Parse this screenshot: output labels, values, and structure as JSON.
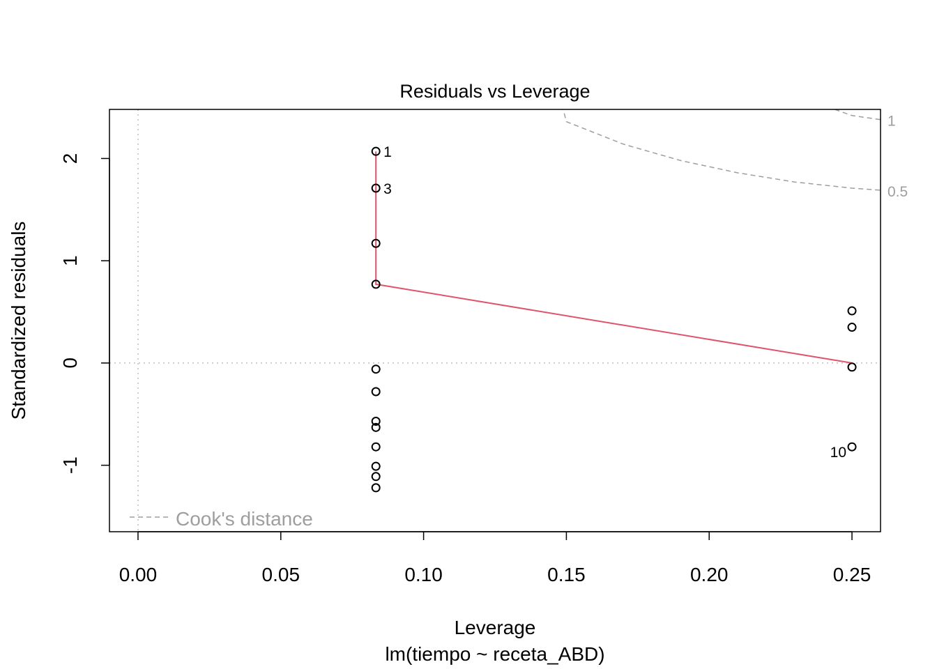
{
  "chart_data": {
    "type": "scatter",
    "title": "Residuals vs Leverage",
    "xlabel": "Leverage",
    "sublabel": "lm(tiempo ~ receta_ABD)",
    "ylabel": "Standardized residuals",
    "xlim": [
      -0.01,
      0.26
    ],
    "ylim": [
      -1.65,
      2.48
    ],
    "xticks": [
      0.0,
      0.05,
      0.1,
      0.15,
      0.2,
      0.25
    ],
    "xtick_labels": [
      "0.00",
      "0.05",
      "0.10",
      "0.15",
      "0.20",
      "0.25"
    ],
    "yticks": [
      -1,
      0,
      1,
      2
    ],
    "ytick_labels": [
      "-1",
      "0",
      "1",
      "2"
    ],
    "grid": false,
    "reference_lines": [
      {
        "axis": "x",
        "value": 0
      },
      {
        "axis": "y",
        "value": 0
      }
    ],
    "points": [
      {
        "x": 0.0833,
        "y": 2.07,
        "label": "1"
      },
      {
        "x": 0.0833,
        "y": 1.71,
        "label": "3"
      },
      {
        "x": 0.0833,
        "y": 1.17
      },
      {
        "x": 0.0833,
        "y": 0.77
      },
      {
        "x": 0.0833,
        "y": -0.06
      },
      {
        "x": 0.0833,
        "y": -0.28
      },
      {
        "x": 0.0833,
        "y": -0.57
      },
      {
        "x": 0.0833,
        "y": -0.63
      },
      {
        "x": 0.0833,
        "y": -0.82
      },
      {
        "x": 0.0833,
        "y": -1.01
      },
      {
        "x": 0.0833,
        "y": -1.11
      },
      {
        "x": 0.0833,
        "y": -1.22
      },
      {
        "x": 0.25,
        "y": 0.51
      },
      {
        "x": 0.25,
        "y": 0.35
      },
      {
        "x": 0.25,
        "y": -0.04
      },
      {
        "x": 0.25,
        "y": -0.82,
        "label": "10"
      }
    ],
    "smooth_line": {
      "color": "#DF536B",
      "x": [
        0.0833,
        0.0833,
        0.25
      ],
      "y": [
        2.07,
        0.77,
        0.0
      ]
    },
    "cooks_contours": [
      {
        "label": "0.5",
        "x": [
          0.139,
          0.15,
          0.17,
          0.19,
          0.21,
          0.23,
          0.25,
          0.26
        ],
        "y": [
          3.55,
          2.36,
          2.14,
          1.98,
          1.86,
          1.77,
          1.71,
          1.69
        ]
      },
      {
        "label": "1",
        "x": [
          0.244,
          0.25,
          0.26
        ],
        "y": [
          2.48,
          2.42,
          2.38
        ]
      }
    ],
    "legend": {
      "entries": [
        "Cook's distance"
      ],
      "position": "bottom-left"
    },
    "colors": {
      "points": "#000000",
      "smooth": "#DF536B",
      "cooks": "#9E9E9E",
      "reference": "#BEBEBE"
    }
  }
}
